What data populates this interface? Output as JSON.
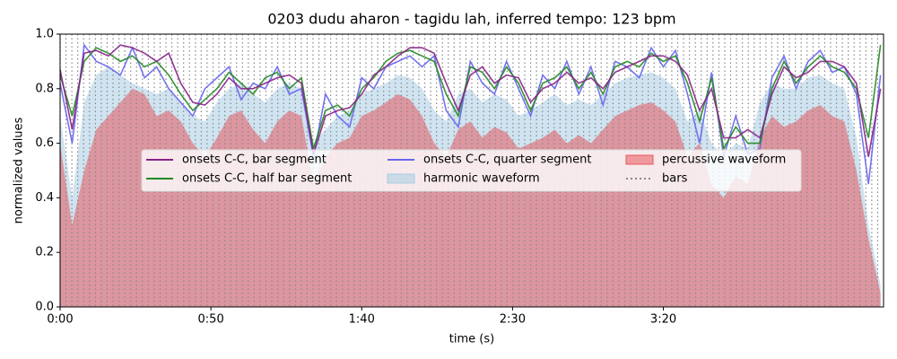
{
  "chart_data": {
    "type": "line",
    "title": "0203 dudu aharon - tagidu lah, inferred tempo: 123 bpm",
    "xlabel": "time (s)",
    "ylabel": "normalized values",
    "xlim": [
      0,
      273
    ],
    "ylim": [
      0,
      1
    ],
    "xticks": [
      {
        "value": 0,
        "label": "0:00"
      },
      {
        "value": 50,
        "label": "0:50"
      },
      {
        "value": 100,
        "label": "1:40"
      },
      {
        "value": 150,
        "label": "2:30"
      },
      {
        "value": 200,
        "label": "3:20"
      }
    ],
    "yticks": [
      {
        "value": 0,
        "label": "0.0"
      },
      0.2,
      0.4,
      0.6,
      0.8,
      {
        "value": 1,
        "label": "1.0"
      }
    ],
    "x": [
      0,
      4,
      8,
      12,
      16,
      20,
      24,
      28,
      32,
      36,
      40,
      44,
      48,
      52,
      56,
      60,
      64,
      68,
      72,
      76,
      80,
      84,
      88,
      92,
      96,
      100,
      104,
      108,
      112,
      116,
      120,
      124,
      128,
      132,
      136,
      140,
      144,
      148,
      152,
      156,
      160,
      164,
      168,
      172,
      176,
      180,
      184,
      188,
      192,
      196,
      200,
      204,
      208,
      212,
      216,
      220,
      224,
      228,
      232,
      236,
      240,
      244,
      248,
      252,
      256,
      260,
      264,
      268,
      272
    ],
    "series": [
      {
        "name": "onsets C-C, bar segment",
        "color": "#882288",
        "kind": "line",
        "values": [
          0.87,
          0.65,
          0.93,
          0.94,
          0.92,
          0.96,
          0.95,
          0.93,
          0.9,
          0.93,
          0.82,
          0.75,
          0.74,
          0.78,
          0.84,
          0.8,
          0.8,
          0.82,
          0.84,
          0.85,
          0.82,
          0.56,
          0.7,
          0.72,
          0.73,
          0.78,
          0.85,
          0.88,
          0.92,
          0.95,
          0.95,
          0.93,
          0.82,
          0.72,
          0.85,
          0.88,
          0.82,
          0.85,
          0.84,
          0.75,
          0.8,
          0.82,
          0.86,
          0.82,
          0.84,
          0.8,
          0.86,
          0.88,
          0.9,
          0.92,
          0.92,
          0.9,
          0.85,
          0.72,
          0.8,
          0.62,
          0.62,
          0.65,
          0.62,
          0.78,
          0.88,
          0.84,
          0.86,
          0.9,
          0.9,
          0.88,
          0.82,
          0.55,
          0.8
        ]
      },
      {
        "name": "onsets C-C, half bar segment",
        "color": "#228822",
        "kind": "line",
        "values": [
          0.85,
          0.7,
          0.9,
          0.95,
          0.93,
          0.9,
          0.92,
          0.88,
          0.9,
          0.85,
          0.78,
          0.72,
          0.76,
          0.8,
          0.86,
          0.82,
          0.78,
          0.84,
          0.86,
          0.8,
          0.84,
          0.58,
          0.72,
          0.74,
          0.7,
          0.8,
          0.84,
          0.9,
          0.93,
          0.94,
          0.92,
          0.9,
          0.78,
          0.7,
          0.88,
          0.86,
          0.8,
          0.88,
          0.82,
          0.72,
          0.82,
          0.84,
          0.88,
          0.8,
          0.86,
          0.78,
          0.88,
          0.9,
          0.88,
          0.93,
          0.9,
          0.92,
          0.82,
          0.68,
          0.84,
          0.58,
          0.66,
          0.6,
          0.6,
          0.8,
          0.9,
          0.82,
          0.88,
          0.92,
          0.88,
          0.86,
          0.8,
          0.62,
          0.96
        ]
      },
      {
        "name": "onsets C-C, quarter segment",
        "color": "#6666ee",
        "kind": "line",
        "values": [
          0.82,
          0.6,
          0.96,
          0.9,
          0.88,
          0.85,
          0.95,
          0.84,
          0.88,
          0.8,
          0.75,
          0.7,
          0.8,
          0.84,
          0.88,
          0.76,
          0.82,
          0.8,
          0.88,
          0.78,
          0.8,
          0.55,
          0.78,
          0.7,
          0.66,
          0.84,
          0.8,
          0.88,
          0.9,
          0.92,
          0.88,
          0.92,
          0.72,
          0.66,
          0.9,
          0.82,
          0.78,
          0.9,
          0.8,
          0.7,
          0.85,
          0.8,
          0.9,
          0.78,
          0.88,
          0.74,
          0.9,
          0.88,
          0.84,
          0.95,
          0.88,
          0.94,
          0.78,
          0.6,
          0.86,
          0.55,
          0.7,
          0.56,
          0.58,
          0.84,
          0.92,
          0.8,
          0.9,
          0.94,
          0.86,
          0.88,
          0.78,
          0.45,
          0.85
        ]
      },
      {
        "name": "harmonic waveform",
        "color": "#a8cce4",
        "kind": "area",
        "values": [
          0.7,
          0.4,
          0.75,
          0.85,
          0.88,
          0.85,
          0.82,
          0.8,
          0.78,
          0.8,
          0.75,
          0.7,
          0.68,
          0.75,
          0.8,
          0.82,
          0.78,
          0.75,
          0.8,
          0.82,
          0.8,
          0.6,
          0.65,
          0.7,
          0.72,
          0.78,
          0.8,
          0.82,
          0.85,
          0.84,
          0.8,
          0.72,
          0.68,
          0.78,
          0.8,
          0.75,
          0.78,
          0.76,
          0.7,
          0.72,
          0.75,
          0.78,
          0.74,
          0.76,
          0.74,
          0.78,
          0.82,
          0.84,
          0.85,
          0.86,
          0.84,
          0.8,
          0.68,
          0.72,
          0.6,
          0.55,
          0.6,
          0.58,
          0.75,
          0.82,
          0.8,
          0.8,
          0.84,
          0.85,
          0.82,
          0.8,
          0.62,
          0.3,
          0.08
        ]
      },
      {
        "name": "percussive waveform",
        "color": "#e8585e",
        "kind": "area",
        "values": [
          0.6,
          0.3,
          0.5,
          0.65,
          0.7,
          0.75,
          0.8,
          0.78,
          0.7,
          0.72,
          0.68,
          0.6,
          0.55,
          0.62,
          0.7,
          0.72,
          0.65,
          0.6,
          0.68,
          0.72,
          0.7,
          0.45,
          0.55,
          0.6,
          0.62,
          0.7,
          0.72,
          0.75,
          0.78,
          0.76,
          0.7,
          0.6,
          0.55,
          0.65,
          0.68,
          0.62,
          0.66,
          0.64,
          0.58,
          0.6,
          0.62,
          0.65,
          0.6,
          0.63,
          0.6,
          0.65,
          0.7,
          0.72,
          0.74,
          0.75,
          0.72,
          0.68,
          0.55,
          0.6,
          0.45,
          0.4,
          0.48,
          0.45,
          0.62,
          0.7,
          0.66,
          0.68,
          0.72,
          0.74,
          0.7,
          0.68,
          0.5,
          0.25,
          0.05
        ]
      },
      {
        "name": "bars",
        "color": "#888888",
        "kind": "vlines",
        "x": [
          0,
          1.95,
          3.9,
          5.85,
          7.8,
          9.75,
          11.7,
          13.65,
          15.6,
          17.55,
          19.5,
          21.45,
          23.4,
          25.35,
          27.3,
          29.25,
          31.2,
          33.15,
          35.1,
          37.05,
          39,
          40.95,
          42.9,
          44.85,
          46.8,
          48.75,
          50.7,
          52.65,
          54.6,
          56.55,
          58.5,
          60.45,
          62.4,
          64.35,
          66.3,
          68.25,
          70.2,
          72.15,
          74.1,
          76.05,
          78,
          79.95,
          81.9,
          83.85,
          85.8,
          87.75,
          89.7,
          91.65,
          93.6,
          95.55,
          97.5,
          99.45,
          101.4,
          103.35,
          105.3,
          107.25,
          109.2,
          111.15,
          113.1,
          115.05,
          117,
          118.95,
          120.9,
          122.85,
          124.8,
          126.75,
          128.7,
          130.65,
          132.6,
          134.55,
          136.5,
          138.45,
          140.4,
          142.35,
          144.3,
          146.25,
          148.2,
          150.15,
          152.1,
          154.05,
          156,
          157.95,
          159.9,
          161.85,
          163.8,
          165.75,
          167.7,
          169.65,
          171.6,
          173.55,
          175.5,
          177.45,
          179.4,
          181.35,
          183.3,
          185.25,
          187.2,
          189.15,
          191.1,
          193.05,
          195,
          196.95,
          198.9,
          200.85,
          202.8,
          204.75,
          206.7,
          208.65,
          210.6,
          212.55,
          214.5,
          216.45,
          218.4,
          220.35,
          222.3,
          224.25,
          226.2,
          228.15,
          230.1,
          232.05,
          234,
          235.95,
          237.9,
          239.85,
          241.8,
          243.75,
          245.7,
          247.65,
          249.6,
          251.55,
          253.5,
          255.45,
          257.4,
          259.35,
          261.3,
          263.25,
          265.2,
          267.15,
          269.1,
          271.05
        ]
      }
    ]
  }
}
